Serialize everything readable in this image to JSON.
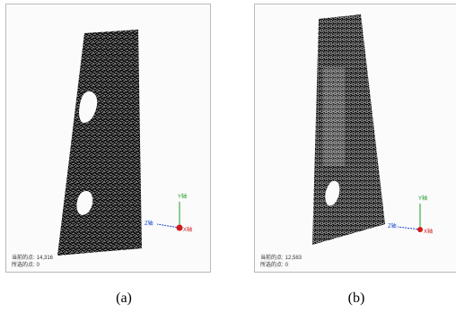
{
  "panels": [
    {
      "status_total_label": "当前的点:",
      "status_total_value": "14,316",
      "status_selected_label": "所选的点:",
      "status_selected_value": "0",
      "axis_y": "Y轴",
      "axis_z": "Z轴",
      "axis_x": "X轴",
      "caption": "(a)"
    },
    {
      "status_total_label": "当前的点:",
      "status_total_value": "12,583",
      "status_selected_label": "所选的点:",
      "status_selected_value": "0",
      "axis_y": "Y轴",
      "axis_z": "Z轴",
      "axis_x": "X轴",
      "caption": "(b)"
    }
  ],
  "colors": {
    "axis_y": "#1d9e2b",
    "axis_z": "#1b4bd1",
    "axis_x": "#d11a1a",
    "point_cloud": "#000000"
  }
}
